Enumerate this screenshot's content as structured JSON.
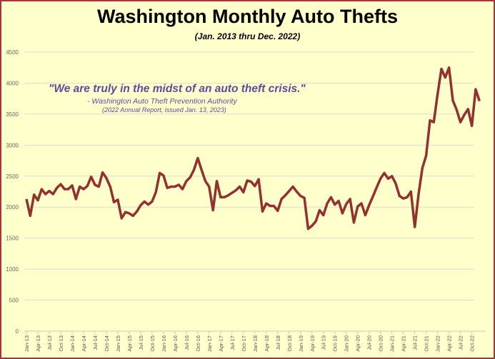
{
  "chart_data": {
    "type": "line",
    "title": "Washington Monthly Auto Thefts",
    "subtitle": "(Jan. 2013 thru Dec. 2022)",
    "annotation": {
      "quote": "\"We are truly in the midst of an auto theft crisis.\"",
      "attribution": "- Washington Auto Theft Prevention Authority",
      "source": "(2022 Annual Report, issued Jan. 13, 2023)"
    },
    "xlabel": "",
    "ylabel": "",
    "ylim": [
      0,
      4500
    ],
    "yticks": [
      0,
      500,
      1000,
      1500,
      2000,
      2500,
      3000,
      3500,
      4000,
      4500
    ],
    "grid": true,
    "line_color": "#93312f",
    "x_start": "Jan-13",
    "xtick_labels": [
      "Jan-13",
      "Apr-13",
      "Jul-13",
      "Oct-13",
      "Jan-14",
      "Apr-14",
      "Jul-14",
      "Oct-14",
      "Jan-15",
      "Apr-15",
      "Jul-15",
      "Oct-15",
      "Jan-16",
      "Apr-16",
      "Jul-16",
      "Oct-16",
      "Jan-17",
      "Apr-17",
      "Jul-17",
      "Oct-17",
      "Jan-18",
      "Apr-18",
      "Jul-18",
      "Oct-18",
      "Jan-19",
      "Apr-19",
      "Jul-19",
      "Oct-19",
      "Jan-20",
      "Apr-20",
      "Jul-20",
      "Oct-20",
      "Jan-21",
      "Apr-21",
      "Jul-21",
      "Oct-21",
      "Jan-22",
      "Apr-22",
      "Jul-22",
      "Oct-22"
    ],
    "values": [
      2130,
      1860,
      2200,
      2110,
      2290,
      2210,
      2260,
      2210,
      2310,
      2370,
      2290,
      2290,
      2350,
      2130,
      2330,
      2290,
      2340,
      2490,
      2360,
      2330,
      2560,
      2470,
      2330,
      2080,
      2120,
      1820,
      1920,
      1900,
      1860,
      1930,
      2030,
      2090,
      2040,
      2090,
      2240,
      2550,
      2510,
      2310,
      2330,
      2330,
      2360,
      2290,
      2420,
      2480,
      2600,
      2790,
      2600,
      2420,
      2330,
      1950,
      2420,
      2160,
      2160,
      2190,
      2230,
      2270,
      2330,
      2240,
      2430,
      2410,
      2340,
      2450,
      1930,
      2060,
      2020,
      2020,
      1940,
      2130,
      2190,
      2260,
      2330,
      2250,
      2180,
      2150,
      1650,
      1700,
      1770,
      1950,
      1870,
      2060,
      2160,
      2040,
      2100,
      1900,
      2050,
      2130,
      1750,
      2010,
      2060,
      1870,
      2030,
      2170,
      2320,
      2460,
      2550,
      2460,
      2500,
      2380,
      2180,
      2140,
      2160,
      2250,
      1680,
      2210,
      2630,
      2830,
      3400,
      3370,
      3820,
      4230,
      4090,
      4250,
      3720,
      3570,
      3370,
      3490,
      3580,
      3310,
      3900,
      3710
    ]
  }
}
